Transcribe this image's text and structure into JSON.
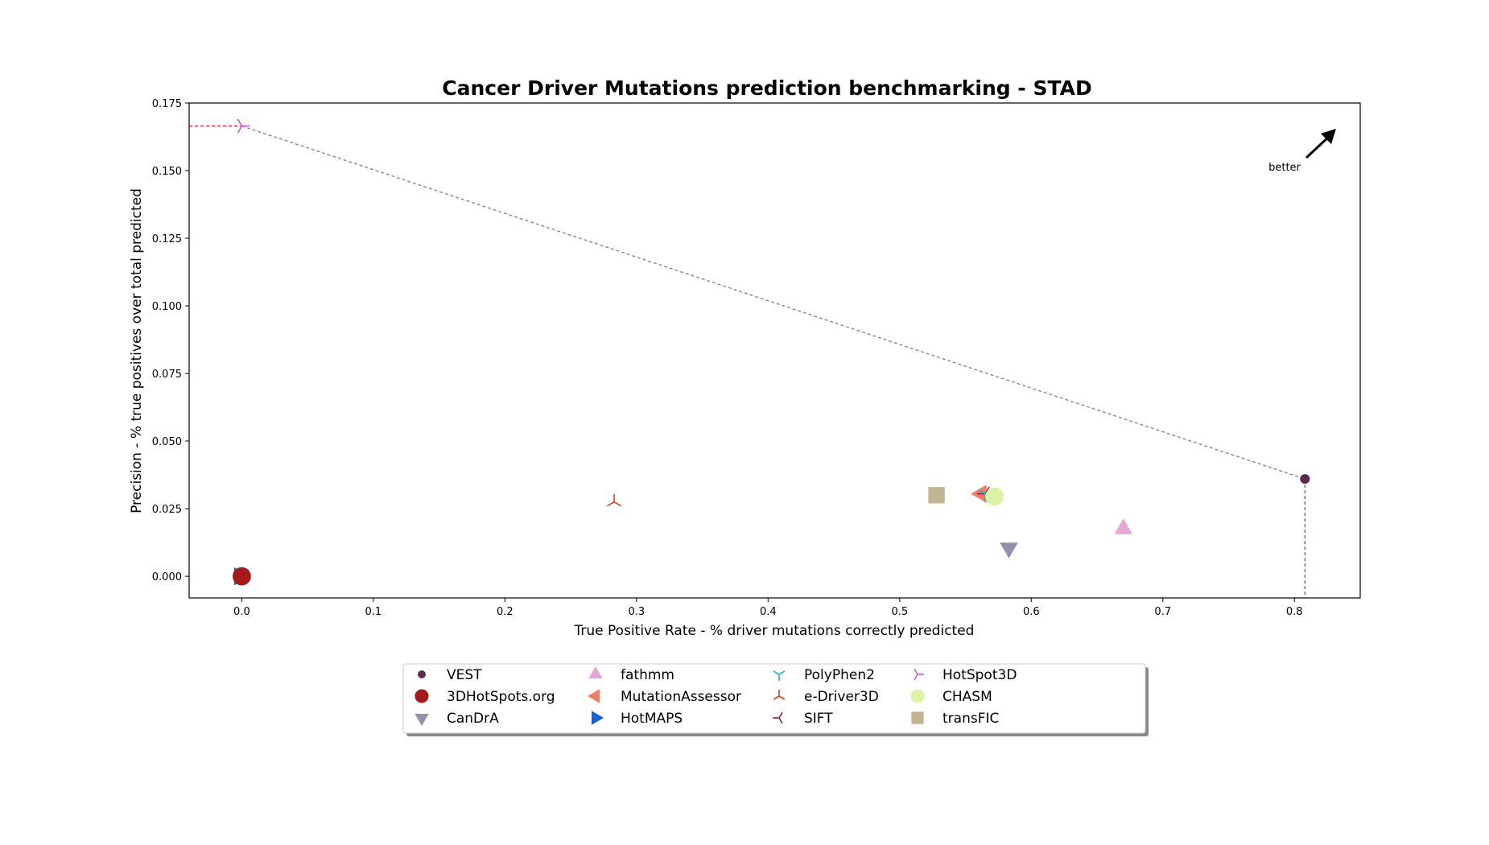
{
  "chart_data": {
    "type": "scatter",
    "title": "Cancer Driver Mutations prediction benchmarking - STAD",
    "xlabel": "True Positive Rate - % driver mutations correctly predicted",
    "ylabel": "Precision - % true positives over total predicted",
    "xlim": [
      -0.04,
      0.85
    ],
    "ylim": [
      -0.008,
      0.175
    ],
    "xticks": [
      "0.0",
      "0.1",
      "0.2",
      "0.3",
      "0.4",
      "0.5",
      "0.6",
      "0.7",
      "0.8"
    ],
    "yticks": [
      "0.000",
      "0.025",
      "0.050",
      "0.075",
      "0.100",
      "0.125",
      "0.150",
      "0.175"
    ],
    "grid": false,
    "annotation": "better",
    "legend_position": "below plot",
    "series": [
      {
        "name": "VEST",
        "x": 0.808,
        "y": 0.036,
        "color": "#5b2a4e",
        "marker": "circle-small"
      },
      {
        "name": "3DHotSpots.org",
        "x": 0.0,
        "y": 0.0,
        "color": "#a51a1a",
        "marker": "circle"
      },
      {
        "name": "CanDrA",
        "x": 0.583,
        "y": 0.0105,
        "color": "#9191ae",
        "marker": "triangle-down"
      },
      {
        "name": "fathmm",
        "x": 0.67,
        "y": 0.0175,
        "color": "#e6a6d6",
        "marker": "triangle-up"
      },
      {
        "name": "MutationAssessor",
        "x": 0.562,
        "y": 0.0305,
        "color": "#f27b6a",
        "marker": "triangle-left"
      },
      {
        "name": "HotMAPS",
        "x": 0.0,
        "y": 0.0,
        "color": "#1560d6",
        "marker": "triangle-right"
      },
      {
        "name": "PolyPhen2",
        "x": 0.565,
        "y": 0.0305,
        "color": "#26b8c4",
        "marker": "tri-down"
      },
      {
        "name": "e-Driver3D",
        "x": 0.283,
        "y": 0.0275,
        "color": "#d9431c",
        "marker": "tri-up"
      },
      {
        "name": "SIFT",
        "x": 0.565,
        "y": 0.0305,
        "color": "#8a1d4a",
        "marker": "tri-left"
      },
      {
        "name": "HotSpot3D",
        "x": 0.0,
        "y": 0.1665,
        "color": "#c45ad6",
        "marker": "tri-right"
      },
      {
        "name": "CHASM",
        "x": 0.572,
        "y": 0.0295,
        "color": "#dcf2a4",
        "marker": "circle"
      },
      {
        "name": "transFIC",
        "x": 0.528,
        "y": 0.03,
        "color": "#c2b594",
        "marker": "square"
      }
    ],
    "pareto_front": [
      [
        0.0,
        0.1665
      ],
      [
        0.808,
        0.036
      ]
    ],
    "colors": {
      "pareto_line": "#808080",
      "guide_line": "#e6263a"
    }
  }
}
